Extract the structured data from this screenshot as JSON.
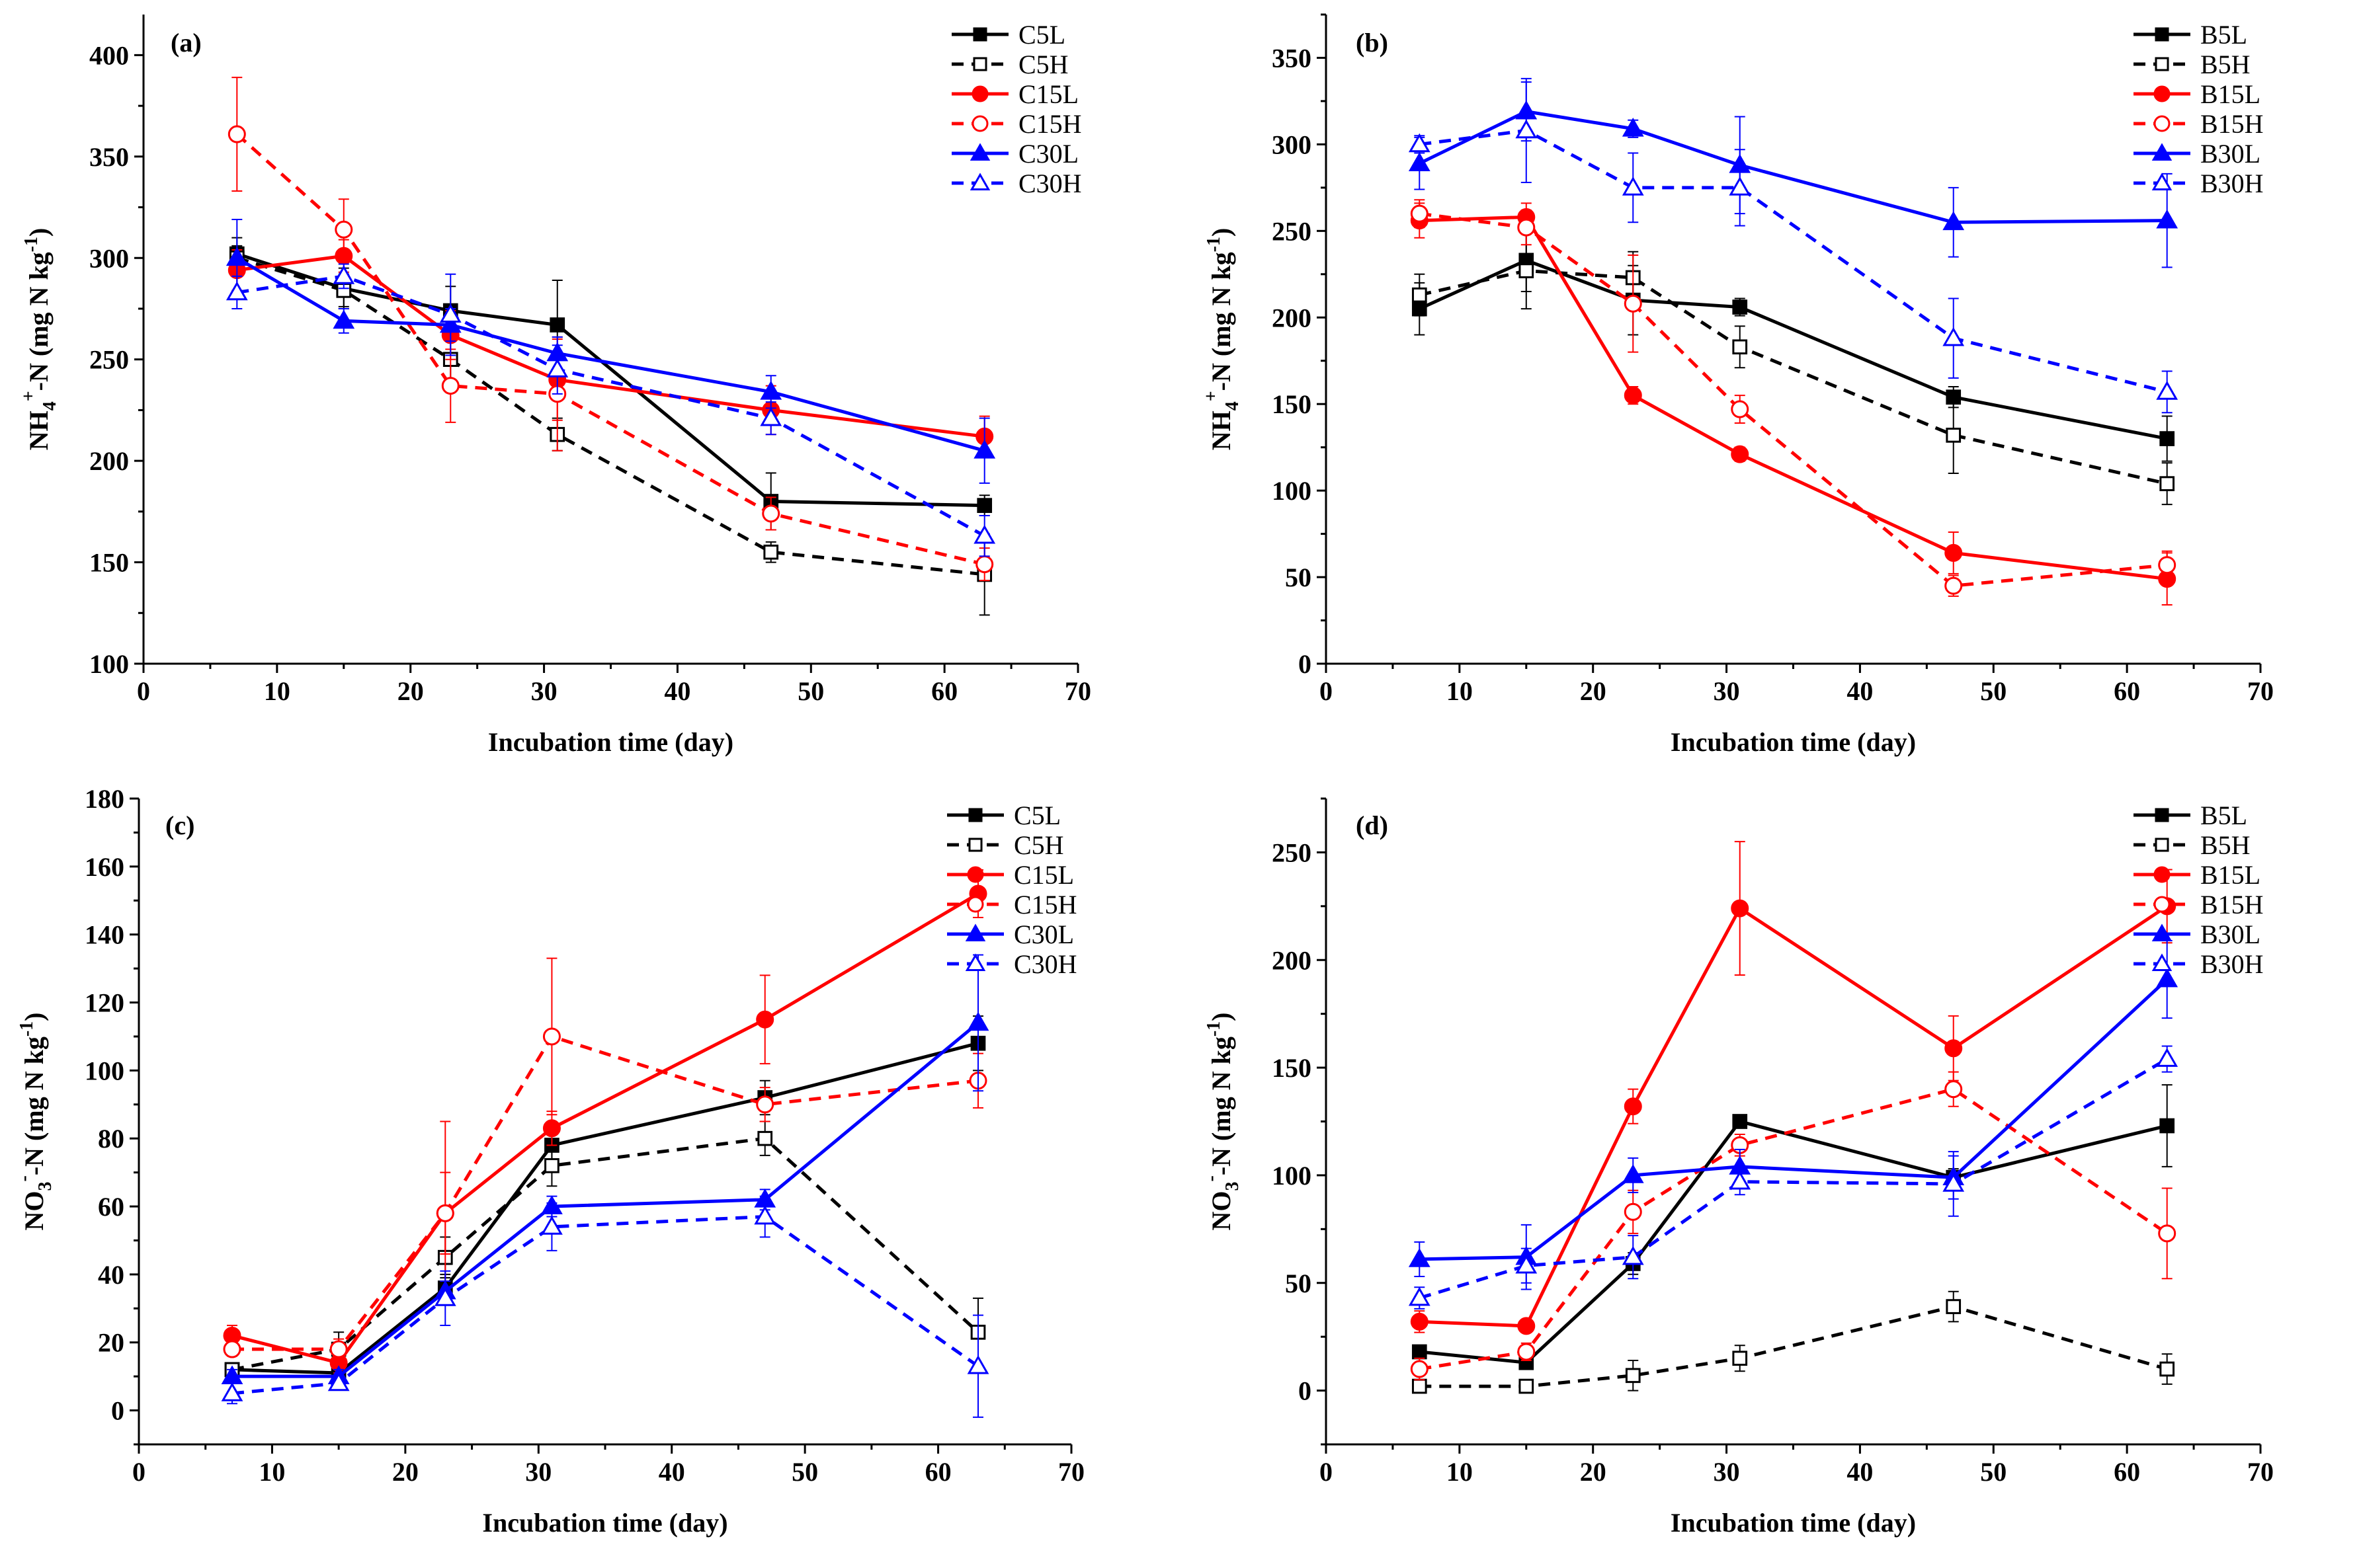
{
  "figure": {
    "x_axis_title": "Incubation time (day)",
    "nh4_ylabel": {
      "main": "NH",
      "sub": "4",
      "sup": "+",
      "rest": "-N (mg N kg",
      "exp": "-1",
      "close": ")"
    },
    "no3_ylabel": {
      "main": "NO",
      "sub": "3",
      "sup": "-",
      "rest": "-N (mg N kg",
      "exp": "-1",
      "close": ")"
    }
  },
  "styles": {
    "colors": {
      "black": "#000000",
      "red": "#ff0000",
      "blue": "#0000ff"
    },
    "markers": {
      "square": "square-marker",
      "circle": "circle-marker",
      "triangle": "triangle-marker"
    }
  },
  "chart_data": [
    {
      "type": "line",
      "panel": "(a)",
      "xlim": [
        0,
        70
      ],
      "ylim": [
        100,
        420
      ],
      "xticks": [
        0,
        10,
        20,
        30,
        40,
        50,
        60,
        70
      ],
      "yticks": [
        100,
        150,
        200,
        250,
        300,
        350,
        400
      ],
      "xlabel": "Incubation time (day)",
      "ylabel": "NH4+-N (mg N kg-1)",
      "x": [
        7,
        15,
        23,
        31,
        47,
        63
      ],
      "series": [
        {
          "name": "C5L",
          "color": "#000000",
          "marker": "square",
          "filled": true,
          "dashed": false,
          "values": [
            302,
            285,
            274,
            267,
            180,
            178
          ],
          "errors": [
            8,
            10,
            12,
            22,
            14,
            5
          ]
        },
        {
          "name": "C5H",
          "color": "#000000",
          "marker": "square",
          "filled": false,
          "dashed": true,
          "values": [
            300,
            284,
            250,
            213,
            155,
            144
          ],
          "errors": [
            6,
            8,
            10,
            8,
            5,
            20
          ]
        },
        {
          "name": "C15L",
          "color": "#ff0000",
          "marker": "circle",
          "filled": true,
          "dashed": false,
          "values": [
            294,
            301,
            262,
            240,
            225,
            212
          ],
          "errors": [
            10,
            8,
            12,
            20,
            12,
            10
          ]
        },
        {
          "name": "C15H",
          "color": "#ff0000",
          "marker": "circle",
          "filled": false,
          "dashed": true,
          "values": [
            361,
            314,
            237,
            233,
            174,
            149
          ],
          "errors": [
            28,
            15,
            18,
            28,
            8,
            8
          ]
        },
        {
          "name": "C30L",
          "color": "#0000ff",
          "marker": "triangle",
          "filled": true,
          "dashed": false,
          "values": [
            300,
            269,
            267,
            253,
            234,
            205
          ],
          "errors": [
            19,
            6,
            8,
            8,
            8,
            16
          ]
        },
        {
          "name": "C30H",
          "color": "#0000ff",
          "marker": "triangle",
          "filled": false,
          "dashed": true,
          "values": [
            283,
            291,
            272,
            245,
            221,
            163
          ],
          "errors": [
            8,
            6,
            20,
            12,
            8,
            10
          ]
        }
      ]
    },
    {
      "type": "line",
      "panel": "(b)",
      "xlim": [
        0,
        70
      ],
      "ylim": [
        0,
        375
      ],
      "xticks": [
        0,
        10,
        20,
        30,
        40,
        50,
        60,
        70
      ],
      "yticks": [
        0,
        50,
        100,
        150,
        200,
        250,
        300,
        350
      ],
      "xlabel": "Incubation time (day)",
      "ylabel": "NH4+-N (mg N kg-1)",
      "x": [
        7,
        15,
        23,
        31,
        47,
        63
      ],
      "series": [
        {
          "name": "B5L",
          "color": "#000000",
          "marker": "square",
          "filled": true,
          "dashed": false,
          "values": [
            205,
            233,
            210,
            206,
            154,
            130
          ],
          "errors": [
            15,
            18,
            20,
            5,
            6,
            13
          ]
        },
        {
          "name": "B5H",
          "color": "#000000",
          "marker": "square",
          "filled": false,
          "dashed": true,
          "values": [
            213,
            227,
            223,
            183,
            132,
            104
          ],
          "errors": [
            12,
            22,
            15,
            12,
            22,
            12
          ]
        },
        {
          "name": "B15L",
          "color": "#ff0000",
          "marker": "circle",
          "filled": true,
          "dashed": false,
          "values": [
            256,
            258,
            155,
            121,
            64,
            49
          ],
          "errors": [
            10,
            8,
            5,
            4,
            12,
            15
          ]
        },
        {
          "name": "B15H",
          "color": "#ff0000",
          "marker": "circle",
          "filled": false,
          "dashed": true,
          "values": [
            260,
            252,
            208,
            147,
            45,
            57
          ],
          "errors": [
            8,
            10,
            28,
            8,
            6,
            8
          ]
        },
        {
          "name": "B30L",
          "color": "#0000ff",
          "marker": "triangle",
          "filled": true,
          "dashed": false,
          "values": [
            289,
            319,
            309,
            288,
            255,
            256
          ],
          "errors": [
            15,
            17,
            5,
            28,
            20,
            27
          ]
        },
        {
          "name": "B30H",
          "color": "#0000ff",
          "marker": "triangle",
          "filled": false,
          "dashed": true,
          "values": [
            300,
            308,
            275,
            275,
            188,
            157
          ],
          "errors": [
            5,
            30,
            20,
            22,
            23,
            12
          ]
        }
      ]
    },
    {
      "type": "line",
      "panel": "(c)",
      "xlim": [
        0,
        70
      ],
      "ylim": [
        -10,
        180
      ],
      "xticks": [
        0,
        10,
        20,
        30,
        40,
        50,
        60,
        70
      ],
      "yticks": [
        0,
        20,
        40,
        60,
        80,
        100,
        120,
        140,
        160,
        180
      ],
      "xlabel": "Incubation time (day)",
      "ylabel": "NO3--N (mg N kg-1)",
      "x": [
        7,
        15,
        23,
        31,
        47,
        63
      ],
      "series": [
        {
          "name": "C5L",
          "color": "#000000",
          "marker": "square",
          "filled": true,
          "dashed": false,
          "values": [
            12,
            11,
            36,
            78,
            92,
            108
          ],
          "errors": [
            2,
            3,
            4,
            5,
            5,
            8
          ]
        },
        {
          "name": "C5H",
          "color": "#000000",
          "marker": "square",
          "filled": false,
          "dashed": true,
          "values": [
            12,
            18,
            45,
            72,
            80,
            23
          ],
          "errors": [
            2,
            5,
            6,
            6,
            5,
            10
          ]
        },
        {
          "name": "C15L",
          "color": "#ff0000",
          "marker": "circle",
          "filled": true,
          "dashed": false,
          "values": [
            22,
            14,
            58,
            83,
            115,
            152
          ],
          "errors": [
            3,
            3,
            27,
            5,
            13,
            7
          ]
        },
        {
          "name": "C15H",
          "color": "#ff0000",
          "marker": "circle",
          "filled": false,
          "dashed": true,
          "values": [
            18,
            18,
            58,
            110,
            90,
            97
          ],
          "errors": [
            2,
            3,
            12,
            23,
            5,
            8
          ]
        },
        {
          "name": "C30L",
          "color": "#0000ff",
          "marker": "triangle",
          "filled": true,
          "dashed": false,
          "values": [
            10,
            10,
            35,
            60,
            62,
            114
          ],
          "errors": [
            2,
            2,
            3,
            3,
            3,
            20
          ]
        },
        {
          "name": "C30H",
          "color": "#0000ff",
          "marker": "triangle",
          "filled": false,
          "dashed": true,
          "values": [
            5,
            8,
            33,
            54,
            57,
            13
          ],
          "errors": [
            3,
            2,
            8,
            7,
            6,
            15
          ]
        }
      ]
    },
    {
      "type": "line",
      "panel": "(d)",
      "xlim": [
        0,
        70
      ],
      "ylim": [
        -25,
        275
      ],
      "xticks": [
        0,
        10,
        20,
        30,
        40,
        50,
        60,
        70
      ],
      "yticks": [
        0,
        50,
        100,
        150,
        200,
        250
      ],
      "xlabel": "Incubation time (day)",
      "ylabel": "NO3--N (mg N kg-1)",
      "x": [
        7,
        15,
        23,
        31,
        47,
        63
      ],
      "series": [
        {
          "name": "B5L",
          "color": "#000000",
          "marker": "square",
          "filled": true,
          "dashed": false,
          "values": [
            18,
            13,
            59,
            125,
            99,
            123
          ],
          "errors": [
            3,
            2,
            5,
            3,
            4,
            19
          ]
        },
        {
          "name": "B5H",
          "color": "#000000",
          "marker": "square",
          "filled": false,
          "dashed": true,
          "values": [
            2,
            2,
            7,
            15,
            39,
            10
          ],
          "errors": [
            1,
            1,
            7,
            6,
            7,
            7
          ]
        },
        {
          "name": "B15L",
          "color": "#ff0000",
          "marker": "circle",
          "filled": true,
          "dashed": false,
          "values": [
            32,
            30,
            132,
            224,
            159,
            225
          ],
          "errors": [
            5,
            3,
            8,
            31,
            15,
            17
          ]
        },
        {
          "name": "B15H",
          "color": "#ff0000",
          "marker": "circle",
          "filled": false,
          "dashed": true,
          "values": [
            10,
            18,
            83,
            114,
            140,
            73
          ],
          "errors": [
            5,
            4,
            10,
            5,
            8,
            21
          ]
        },
        {
          "name": "B30L",
          "color": "#0000ff",
          "marker": "triangle",
          "filled": true,
          "dashed": false,
          "values": [
            61,
            62,
            100,
            104,
            99,
            191
          ],
          "errors": [
            8,
            15,
            8,
            8,
            10,
            18
          ]
        },
        {
          "name": "B30H",
          "color": "#0000ff",
          "marker": "triangle",
          "filled": false,
          "dashed": true,
          "values": [
            43,
            58,
            62,
            97,
            96,
            154
          ],
          "errors": [
            5,
            8,
            10,
            6,
            15,
            6
          ]
        }
      ]
    }
  ]
}
